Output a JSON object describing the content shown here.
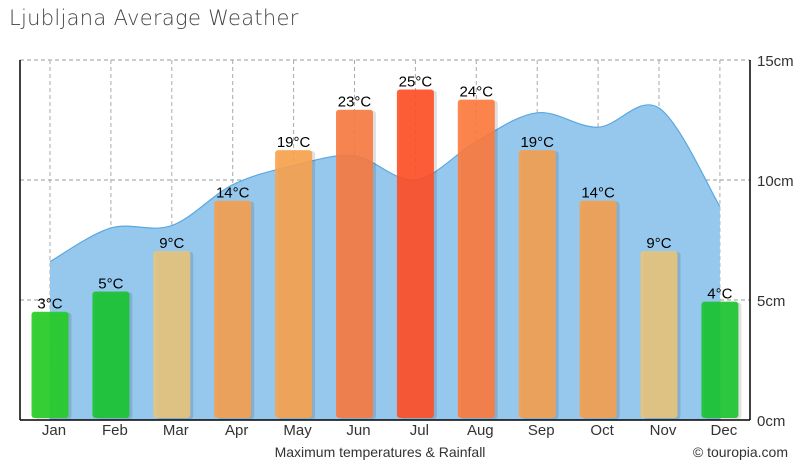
{
  "chart_data": {
    "type": "bar",
    "title": "Ljubljana Average Weather",
    "xlabel": "Maximum temperatures & Rainfall",
    "credit": "© touropia.com",
    "categories": [
      "Jan",
      "Feb",
      "Mar",
      "Apr",
      "May",
      "Jun",
      "Jul",
      "Aug",
      "Sep",
      "Oct",
      "Nov",
      "Dec"
    ],
    "series": [
      {
        "type": "bar",
        "unit": "°C",
        "values": [
          3,
          5,
          9,
          14,
          19,
          23,
          25,
          24,
          19,
          14,
          9,
          4
        ],
        "labels": [
          "3°C",
          "5°C",
          "9°C",
          "14°C",
          "19°C",
          "23°C",
          "25°C",
          "24°C",
          "19°C",
          "14°C",
          "9°C",
          "4°C"
        ],
        "colors": [
          "#22cc22",
          "#18c42e",
          "#e8c47a",
          "#f4a04e",
          "#f8a24c",
          "#f87a40",
          "#ff4e24",
          "#fd7a3c",
          "#f4a04e",
          "#f4a04e",
          "#e8c47a",
          "#18c42e"
        ]
      },
      {
        "type": "area",
        "unit": "cm",
        "values": [
          6.6,
          8.0,
          8.1,
          9.8,
          10.6,
          11.0,
          10.0,
          11.6,
          12.8,
          12.2,
          13.0,
          8.9
        ],
        "color": "#96c8ee"
      }
    ],
    "y_right": {
      "ticks": [
        "0cm",
        "5cm",
        "10cm",
        "15cm"
      ],
      "range": [
        0,
        15
      ]
    },
    "grid": true
  }
}
